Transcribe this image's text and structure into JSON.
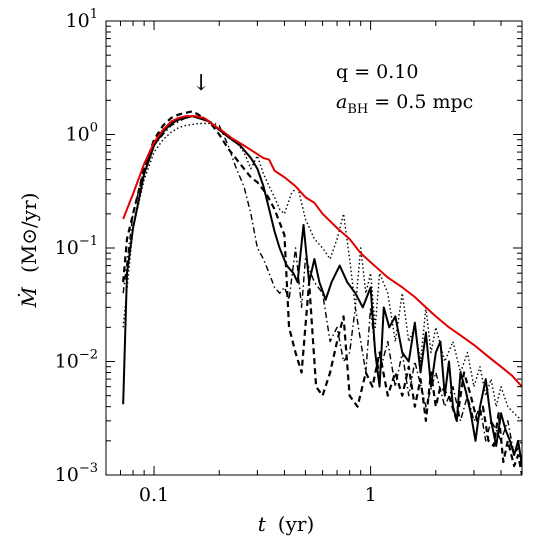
{
  "chart_data": {
    "type": "line",
    "x_scale": "log",
    "y_scale": "log",
    "xlim": [
      0.06,
      5.0
    ],
    "ylim": [
      0.001,
      10
    ],
    "x_ticks": [
      {
        "value": 0.1,
        "label": "0.1"
      },
      {
        "value": 1,
        "label": "1"
      }
    ],
    "y_ticks": [
      {
        "value": 0.001,
        "base": "10",
        "exp": "−3"
      },
      {
        "value": 0.01,
        "base": "10",
        "exp": "−2"
      },
      {
        "value": 0.1,
        "base": "10",
        "exp": "−1"
      },
      {
        "value": 1,
        "base": "10",
        "exp": "0"
      },
      {
        "value": 10,
        "base": "10",
        "exp": "1"
      }
    ],
    "xlabel": {
      "symbol": "t",
      "unit": "(yr)"
    },
    "ylabel": {
      "symbol": "Ṁ",
      "unit": "(M⊙/yr)"
    },
    "annotations": {
      "q_label": "q = 0.10",
      "a_label_main": "a",
      "a_label_sub": "BH",
      "a_label_rest": " = 0.5 mpc",
      "arrow_x": 0.165,
      "arrow_symbol": "↓"
    },
    "grid": false,
    "series": [
      {
        "style": "red-solid",
        "color": "#e00000",
        "points": [
          [
            0.072,
            0.18
          ],
          [
            0.08,
            0.3
          ],
          [
            0.09,
            0.55
          ],
          [
            0.1,
            0.85
          ],
          [
            0.11,
            1.1
          ],
          [
            0.12,
            1.3
          ],
          [
            0.13,
            1.4
          ],
          [
            0.14,
            1.45
          ],
          [
            0.155,
            1.45
          ],
          [
            0.17,
            1.4
          ],
          [
            0.19,
            1.2
          ],
          [
            0.21,
            1.05
          ],
          [
            0.23,
            0.92
          ],
          [
            0.26,
            0.8
          ],
          [
            0.29,
            0.7
          ],
          [
            0.32,
            0.62
          ],
          [
            0.34,
            0.6
          ],
          [
            0.36,
            0.48
          ],
          [
            0.4,
            0.42
          ],
          [
            0.45,
            0.35
          ],
          [
            0.5,
            0.28
          ],
          [
            0.55,
            0.25
          ],
          [
            0.6,
            0.2
          ],
          [
            0.7,
            0.15
          ],
          [
            0.8,
            0.12
          ],
          [
            0.9,
            0.09
          ],
          [
            1.0,
            0.075
          ],
          [
            1.2,
            0.055
          ],
          [
            1.4,
            0.045
          ],
          [
            1.6,
            0.037
          ],
          [
            1.8,
            0.03
          ],
          [
            2.0,
            0.025
          ],
          [
            2.3,
            0.02
          ],
          [
            2.6,
            0.017
          ],
          [
            3.0,
            0.014
          ],
          [
            3.5,
            0.011
          ],
          [
            4.0,
            0.009
          ],
          [
            4.5,
            0.0075
          ],
          [
            5.0,
            0.006
          ]
        ]
      },
      {
        "style": "black-solid",
        "color": "#000000",
        "points": [
          [
            0.072,
            0.0042
          ],
          [
            0.075,
            0.06
          ],
          [
            0.08,
            0.15
          ],
          [
            0.09,
            0.45
          ],
          [
            0.1,
            0.8
          ],
          [
            0.11,
            1.05
          ],
          [
            0.12,
            1.25
          ],
          [
            0.13,
            1.35
          ],
          [
            0.14,
            1.4
          ],
          [
            0.15,
            1.45
          ],
          [
            0.16,
            1.4
          ],
          [
            0.18,
            1.3
          ],
          [
            0.2,
            1.1
          ],
          [
            0.22,
            0.95
          ],
          [
            0.25,
            0.8
          ],
          [
            0.28,
            0.62
          ],
          [
            0.3,
            0.5
          ],
          [
            0.32,
            0.35
          ],
          [
            0.34,
            0.22
          ],
          [
            0.36,
            0.14
          ],
          [
            0.38,
            0.1
          ],
          [
            0.41,
            0.07
          ],
          [
            0.44,
            0.06
          ],
          [
            0.46,
            0.05
          ],
          [
            0.49,
            0.16
          ],
          [
            0.52,
            0.05
          ],
          [
            0.55,
            0.08
          ],
          [
            0.58,
            0.05
          ],
          [
            0.62,
            0.035
          ],
          [
            0.66,
            0.05
          ],
          [
            0.72,
            0.07
          ],
          [
            0.78,
            0.05
          ],
          [
            0.85,
            0.04
          ],
          [
            0.92,
            0.03
          ],
          [
            1.0,
            0.045
          ],
          [
            1.05,
            0.012
          ],
          [
            1.1,
            0.006
          ],
          [
            1.15,
            0.03
          ],
          [
            1.22,
            0.02
          ],
          [
            1.3,
            0.025
          ],
          [
            1.4,
            0.012
          ],
          [
            1.5,
            0.01
          ],
          [
            1.6,
            0.022
          ],
          [
            1.7,
            0.008
          ],
          [
            1.8,
            0.018
          ],
          [
            1.9,
            0.006
          ],
          [
            2.0,
            0.012
          ],
          [
            2.1,
            0.015
          ],
          [
            2.2,
            0.005
          ],
          [
            2.3,
            0.01
          ],
          [
            2.4,
            0.004
          ],
          [
            2.5,
            0.003
          ],
          [
            2.6,
            0.008
          ],
          [
            2.75,
            0.0055
          ],
          [
            2.9,
            0.0035
          ],
          [
            3.05,
            0.002
          ],
          [
            3.2,
            0.004
          ],
          [
            3.4,
            0.007
          ],
          [
            3.6,
            0.003
          ],
          [
            3.8,
            0.0018
          ],
          [
            4.0,
            0.0035
          ],
          [
            4.2,
            0.0025
          ],
          [
            4.4,
            0.002
          ],
          [
            4.6,
            0.0015
          ],
          [
            4.8,
            0.002
          ],
          [
            5.0,
            0.0012
          ]
        ]
      },
      {
        "style": "black-dashed",
        "color": "#000000",
        "points": [
          [
            0.072,
            0.05
          ],
          [
            0.075,
            0.12
          ],
          [
            0.08,
            0.2
          ],
          [
            0.09,
            0.5
          ],
          [
            0.1,
            0.9
          ],
          [
            0.11,
            1.2
          ],
          [
            0.12,
            1.4
          ],
          [
            0.13,
            1.5
          ],
          [
            0.14,
            1.55
          ],
          [
            0.15,
            1.6
          ],
          [
            0.16,
            1.5
          ],
          [
            0.18,
            1.3
          ],
          [
            0.2,
            1.0
          ],
          [
            0.22,
            0.75
          ],
          [
            0.25,
            0.55
          ],
          [
            0.28,
            0.42
          ],
          [
            0.3,
            0.38
          ],
          [
            0.33,
            0.3
          ],
          [
            0.36,
            0.22
          ],
          [
            0.4,
            0.13
          ],
          [
            0.42,
            0.02
          ],
          [
            0.45,
            0.012
          ],
          [
            0.48,
            0.008
          ],
          [
            0.52,
            0.05
          ],
          [
            0.56,
            0.006
          ],
          [
            0.6,
            0.005
          ],
          [
            0.65,
            0.008
          ],
          [
            0.7,
            0.015
          ],
          [
            0.75,
            0.025
          ],
          [
            0.8,
            0.005
          ],
          [
            0.87,
            0.004
          ],
          [
            0.95,
            0.008
          ],
          [
            1.02,
            0.006
          ],
          [
            1.1,
            0.012
          ],
          [
            1.2,
            0.005
          ],
          [
            1.3,
            0.008
          ],
          [
            1.4,
            0.005
          ],
          [
            1.5,
            0.009
          ],
          [
            1.6,
            0.004
          ],
          [
            1.7,
            0.007
          ],
          [
            1.8,
            0.003
          ],
          [
            1.9,
            0.008
          ],
          [
            2.0,
            0.004
          ],
          [
            2.1,
            0.006
          ],
          [
            2.3,
            0.005
          ],
          [
            2.5,
            0.003
          ],
          [
            2.7,
            0.008
          ],
          [
            2.9,
            0.005
          ],
          [
            3.1,
            0.003
          ],
          [
            3.3,
            0.004
          ],
          [
            3.5,
            0.002
          ],
          [
            3.7,
            0.0018
          ],
          [
            3.9,
            0.0035
          ],
          [
            4.1,
            0.0013
          ],
          [
            4.3,
            0.002
          ],
          [
            4.6,
            0.0012
          ],
          [
            4.8,
            0.0015
          ],
          [
            5.0,
            0.001
          ]
        ]
      },
      {
        "style": "black-dotted",
        "color": "#000000",
        "points": [
          [
            0.072,
            0.02
          ],
          [
            0.08,
            0.15
          ],
          [
            0.09,
            0.4
          ],
          [
            0.1,
            0.7
          ],
          [
            0.11,
            0.9
          ],
          [
            0.12,
            1.05
          ],
          [
            0.13,
            1.15
          ],
          [
            0.14,
            1.2
          ],
          [
            0.16,
            1.25
          ],
          [
            0.18,
            1.25
          ],
          [
            0.2,
            1.1
          ],
          [
            0.22,
            0.95
          ],
          [
            0.24,
            0.85
          ],
          [
            0.26,
            0.7
          ],
          [
            0.28,
            0.5
          ],
          [
            0.3,
            0.65
          ],
          [
            0.32,
            0.45
          ],
          [
            0.34,
            0.35
          ],
          [
            0.36,
            0.28
          ],
          [
            0.38,
            0.22
          ],
          [
            0.4,
            0.2
          ],
          [
            0.43,
            0.3
          ],
          [
            0.46,
            0.35
          ],
          [
            0.5,
            0.18
          ],
          [
            0.55,
            0.12
          ],
          [
            0.6,
            0.1
          ],
          [
            0.65,
            0.08
          ],
          [
            0.7,
            0.12
          ],
          [
            0.75,
            0.2
          ],
          [
            0.8,
            0.08
          ],
          [
            0.85,
            0.03
          ],
          [
            0.9,
            0.1
          ],
          [
            0.95,
            0.04
          ],
          [
            1.0,
            0.06
          ],
          [
            1.05,
            0.02
          ],
          [
            1.1,
            0.06
          ],
          [
            1.2,
            0.04
          ],
          [
            1.3,
            0.015
          ],
          [
            1.4,
            0.04
          ],
          [
            1.5,
            0.015
          ],
          [
            1.6,
            0.02
          ],
          [
            1.7,
            0.01
          ],
          [
            1.8,
            0.03
          ],
          [
            1.9,
            0.012
          ],
          [
            2.0,
            0.02
          ],
          [
            2.2,
            0.01
          ],
          [
            2.4,
            0.015
          ],
          [
            2.6,
            0.008
          ],
          [
            2.8,
            0.012
          ],
          [
            3.0,
            0.006
          ],
          [
            3.2,
            0.009
          ],
          [
            3.4,
            0.005
          ],
          [
            3.6,
            0.007
          ],
          [
            3.8,
            0.004
          ],
          [
            4.0,
            0.006
          ],
          [
            4.3,
            0.004
          ],
          [
            4.6,
            0.0035
          ],
          [
            5.0,
            0.003
          ]
        ]
      },
      {
        "style": "black-dashdot",
        "color": "#000000",
        "points": [
          [
            0.072,
            0.04
          ],
          [
            0.08,
            0.2
          ],
          [
            0.09,
            0.5
          ],
          [
            0.1,
            0.8
          ],
          [
            0.11,
            1.0
          ],
          [
            0.12,
            1.2
          ],
          [
            0.13,
            1.3
          ],
          [
            0.14,
            1.4
          ],
          [
            0.15,
            1.45
          ],
          [
            0.16,
            1.4
          ],
          [
            0.18,
            1.3
          ],
          [
            0.2,
            1.2
          ],
          [
            0.22,
            0.8
          ],
          [
            0.24,
            0.5
          ],
          [
            0.26,
            0.35
          ],
          [
            0.28,
            0.2
          ],
          [
            0.3,
            0.1
          ],
          [
            0.32,
            0.08
          ],
          [
            0.34,
            0.06
          ],
          [
            0.36,
            0.045
          ],
          [
            0.38,
            0.04
          ],
          [
            0.4,
            0.045
          ],
          [
            0.42,
            0.035
          ],
          [
            0.45,
            0.1
          ],
          [
            0.48,
            0.03
          ],
          [
            0.5,
            0.08
          ],
          [
            0.55,
            0.05
          ],
          [
            0.6,
            0.04
          ],
          [
            0.65,
            0.015
          ],
          [
            0.7,
            0.02
          ],
          [
            0.75,
            0.01
          ],
          [
            0.8,
            0.012
          ],
          [
            0.85,
            0.03
          ],
          [
            0.9,
            0.015
          ],
          [
            0.95,
            0.008
          ],
          [
            1.0,
            0.03
          ],
          [
            1.05,
            0.012
          ],
          [
            1.1,
            0.008
          ],
          [
            1.2,
            0.015
          ],
          [
            1.3,
            0.006
          ],
          [
            1.4,
            0.012
          ],
          [
            1.5,
            0.005
          ],
          [
            1.6,
            0.01
          ],
          [
            1.8,
            0.004
          ],
          [
            2.0,
            0.008
          ],
          [
            2.2,
            0.004
          ],
          [
            2.4,
            0.006
          ],
          [
            2.6,
            0.003
          ],
          [
            2.8,
            0.005
          ],
          [
            3.0,
            0.003
          ],
          [
            3.2,
            0.004
          ],
          [
            3.4,
            0.002
          ],
          [
            3.6,
            0.003
          ],
          [
            3.8,
            0.0025
          ],
          [
            4.0,
            0.002
          ],
          [
            4.3,
            0.003
          ],
          [
            4.6,
            0.0015
          ],
          [
            5.0,
            0.002
          ]
        ]
      }
    ]
  }
}
